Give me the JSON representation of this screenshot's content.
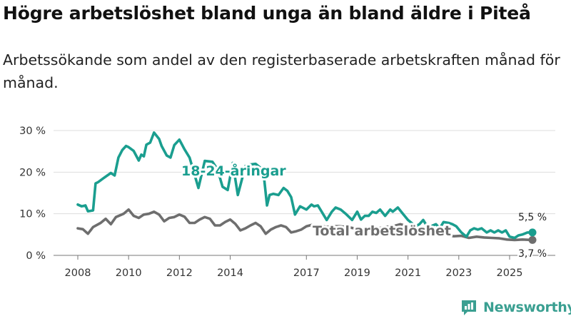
{
  "header": {
    "title": "Högre arbetslöshet bland unga än bland äldre i Piteå",
    "subtitle": "Arbetssökande som andel av den registerbaserade arbetskraften månad för månad."
  },
  "brand": {
    "name": "Newsworthy"
  },
  "colors": {
    "youth": "#1a9e8f",
    "total": "#6e6e6e",
    "grid": "#dddddd",
    "axis": "#777777",
    "brand": "#3a9f91"
  },
  "chart_data": {
    "type": "line",
    "title": "Högre arbetslöshet bland unga än bland äldre i Piteå",
    "subtitle": "Arbetssökande som andel av den registerbaserade arbetskraften månad för månad.",
    "xlabel": "",
    "ylabel": "",
    "x_range": [
      2008.0,
      2025.9
    ],
    "ylim": [
      0,
      30
    ],
    "y_ticks": [
      0,
      10,
      20,
      30
    ],
    "y_tick_labels": [
      "0 %",
      "10 %",
      "20 %",
      "30 %"
    ],
    "x_ticks": [
      2008,
      2010,
      2012,
      2014,
      2017,
      2019,
      2021,
      2023,
      2025
    ],
    "x_tick_labels": [
      "2008",
      "2010",
      "2012",
      "2014",
      "2017",
      "2019",
      "2021",
      "2023",
      "2025"
    ],
    "grid": true,
    "series": [
      {
        "name": "18-24-åringar",
        "label": "18-24-åringar",
        "end_label": "5,5 %",
        "x": [
          2008.0,
          2008.15,
          2008.3,
          2008.4,
          2008.6,
          2008.7,
          2008.8,
          2009.0,
          2009.3,
          2009.45,
          2009.6,
          2009.75,
          2009.9,
          2010.0,
          2010.2,
          2010.4,
          2010.5,
          2010.6,
          2010.7,
          2010.85,
          2011.0,
          2011.2,
          2011.3,
          2011.5,
          2011.65,
          2011.8,
          2012.0,
          2012.2,
          2012.4,
          2012.75,
          2013.0,
          2013.3,
          2013.5,
          2013.7,
          2013.9,
          2014.1,
          2014.3,
          2014.6,
          2014.75,
          2015.0,
          2015.3,
          2015.45,
          2015.55,
          2015.7,
          2015.9,
          2016.1,
          2016.25,
          2016.4,
          2016.55,
          2016.75,
          2017.0,
          2017.2,
          2017.3,
          2017.45,
          2017.55,
          2017.8,
          2018.0,
          2018.15,
          2018.35,
          2018.55,
          2018.8,
          2019.0,
          2019.15,
          2019.3,
          2019.45,
          2019.6,
          2019.75,
          2019.9,
          2020.1,
          2020.3,
          2020.4,
          2020.6,
          2020.8,
          2021.0,
          2021.2,
          2021.3,
          2021.45,
          2021.6,
          2021.75,
          2021.9,
          2022.1,
          2022.25,
          2022.4,
          2022.6,
          2022.75,
          2022.9,
          2023.1,
          2023.3,
          2023.45,
          2023.6,
          2023.75,
          2023.9,
          2024.1,
          2024.25,
          2024.4,
          2024.55,
          2024.7,
          2024.85,
          2025.0,
          2025.2,
          2025.35,
          2025.5,
          2025.7,
          2025.9
        ],
        "values": [
          12.2,
          11.8,
          12.0,
          10.6,
          10.8,
          17.3,
          17.6,
          18.5,
          19.8,
          19.2,
          23.5,
          25.3,
          26.3,
          26.0,
          25.1,
          22.8,
          24.2,
          23.8,
          26.6,
          27.1,
          29.5,
          28.0,
          26.3,
          24.0,
          23.5,
          26.5,
          27.8,
          25.5,
          23.5,
          16.2,
          22.7,
          22.5,
          20.7,
          16.5,
          15.7,
          22.2,
          14.5,
          21.5,
          21.8,
          22.0,
          20.5,
          12.0,
          14.5,
          14.8,
          14.5,
          16.2,
          15.5,
          14.0,
          9.8,
          11.8,
          11.0,
          12.2,
          11.8,
          12.0,
          11.0,
          8.5,
          10.5,
          11.5,
          11.0,
          10.0,
          8.5,
          10.5,
          8.6,
          9.5,
          9.5,
          10.5,
          10.2,
          11.0,
          9.5,
          11.0,
          10.5,
          11.5,
          10.0,
          8.5,
          7.5,
          7.0,
          7.5,
          8.5,
          7.0,
          7.0,
          7.5,
          6.5,
          8.0,
          7.8,
          7.5,
          7.0,
          5.5,
          4.5,
          6.0,
          6.5,
          6.2,
          6.5,
          5.5,
          6.0,
          5.5,
          6.0,
          5.5,
          6.0,
          4.5,
          4.2,
          4.8,
          5.0,
          5.5,
          5.5
        ]
      },
      {
        "name": "Total arbetslöshet",
        "label": "Total arbetslöshet",
        "end_label": "3,7 %",
        "x": [
          2008.0,
          2008.2,
          2008.4,
          2008.6,
          2008.9,
          2009.1,
          2009.3,
          2009.5,
          2009.8,
          2010.0,
          2010.2,
          2010.4,
          2010.6,
          2010.8,
          2011.0,
          2011.2,
          2011.4,
          2011.6,
          2011.8,
          2012.0,
          2012.2,
          2012.4,
          2012.6,
          2012.8,
          2013.0,
          2013.2,
          2013.4,
          2013.6,
          2013.8,
          2014.0,
          2014.2,
          2014.4,
          2014.6,
          2014.8,
          2015.0,
          2015.2,
          2015.4,
          2015.6,
          2015.8,
          2016.0,
          2016.2,
          2016.4,
          2016.6,
          2016.8,
          2017.0,
          2017.2,
          2017.5,
          2017.8,
          2018.0,
          2018.3,
          2018.6,
          2018.9,
          2019.2,
          2019.5,
          2019.8,
          2020.1,
          2020.4,
          2020.7,
          2021.0,
          2021.3,
          2021.6,
          2021.9,
          2022.2,
          2022.5,
          2022.8,
          2023.1,
          2023.4,
          2023.7,
          2024.0,
          2024.3,
          2024.6,
          2024.9,
          2025.2,
          2025.5,
          2025.9
        ],
        "values": [
          6.5,
          6.3,
          5.2,
          6.8,
          7.8,
          8.8,
          7.5,
          9.2,
          10.0,
          11.0,
          9.5,
          9.0,
          9.8,
          10.0,
          10.5,
          9.8,
          8.2,
          9.0,
          9.2,
          9.8,
          9.3,
          7.8,
          7.8,
          8.6,
          9.2,
          8.8,
          7.2,
          7.2,
          8.0,
          8.6,
          7.6,
          6.0,
          6.5,
          7.2,
          7.8,
          7.0,
          5.2,
          6.2,
          6.8,
          7.2,
          6.8,
          5.5,
          5.8,
          6.2,
          7.0,
          7.3,
          7.2,
          6.8,
          7.0,
          7.0,
          6.8,
          6.5,
          6.5,
          6.7,
          6.5,
          6.8,
          7.0,
          7.5,
          7.0,
          6.5,
          5.8,
          5.5,
          5.0,
          5.0,
          4.6,
          4.7,
          4.2,
          4.5,
          4.3,
          4.2,
          4.1,
          3.8,
          3.7,
          3.8,
          3.7
        ]
      }
    ]
  }
}
